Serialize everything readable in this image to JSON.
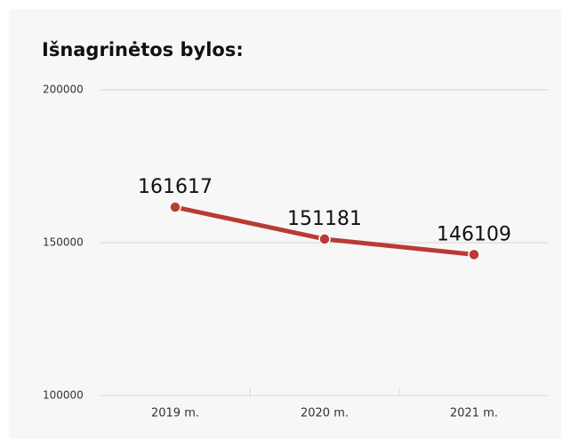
{
  "chart_data": {
    "type": "line",
    "title": "Išnagrinėtos bylos:",
    "categories": [
      "2019 m.",
      "2020 m.",
      "2021 m."
    ],
    "series": [
      {
        "name": "Išnagrinėtos bylos",
        "color": "#b83b34",
        "values": [
          161617,
          151181,
          146109
        ]
      }
    ],
    "ylim": [
      100000,
      200000
    ],
    "yticks": [
      100000,
      150000,
      200000
    ],
    "grid": true
  }
}
